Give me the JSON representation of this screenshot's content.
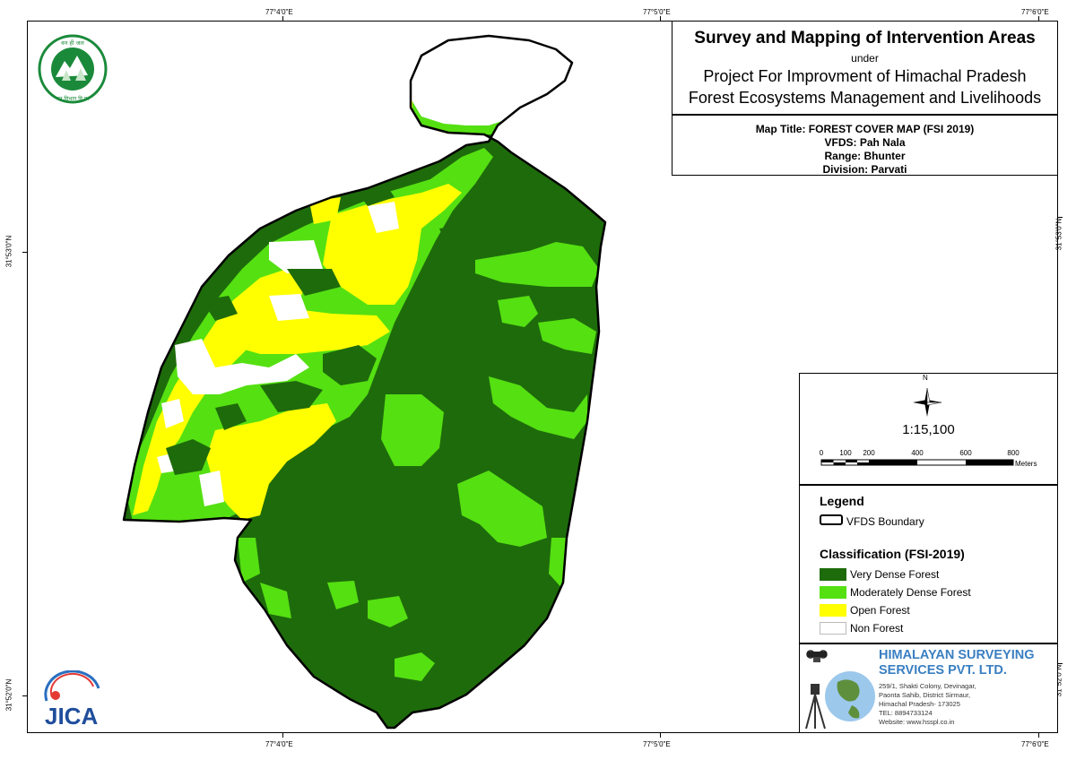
{
  "title": {
    "main": "Survey and Mapping of Intervention Areas",
    "under": "under",
    "project_line1": "Project For Improvment of Himachal Pradesh",
    "project_line2": "Forest Ecosystems Management and Livelihoods"
  },
  "map_info": {
    "map_title": "Map Title: FOREST COVER MAP (FSI 2019)",
    "vfds": "VFDS: Pah Nala",
    "range": "Range: Bhunter",
    "division": "Division: Parvati"
  },
  "graticule": {
    "top": [
      "77°4'0\"E",
      "77°5'0\"E",
      "77°6'0\"E"
    ],
    "bottom": [
      "77°4'0\"E",
      "77°5'0\"E",
      "77°6'0\"E"
    ],
    "left": [
      "31°53'0\"N",
      "31°52'0\"N"
    ],
    "right": [
      "31°53'0\"N",
      "31°52'0\"N"
    ]
  },
  "north_arrow": {
    "label": "N",
    "icon": "north-arrow-icon"
  },
  "scale": {
    "ratio": "1:15,100",
    "bar_labels": [
      "0",
      "100",
      "200",
      "400",
      "600",
      "800"
    ],
    "unit": "Meters"
  },
  "legend": {
    "title": "Legend",
    "boundary_label": "VFDS Boundary",
    "classification_title": "Classification (FSI-2019)",
    "classes": [
      {
        "label": "Very Dense Forest",
        "color": "#1e6b0b"
      },
      {
        "label": "Moderately Dense Forest",
        "color": "#55e012"
      },
      {
        "label": "Open Forest",
        "color": "#ffff00"
      },
      {
        "label": "Non Forest",
        "color": "#ffffff"
      }
    ]
  },
  "company": {
    "name_line1": "HIMALAYAN SURVEYING",
    "name_line2": "SERVICES PVT. LTD.",
    "address": [
      "259/1, Shakti Colony, Devinagar,",
      "Paonta Sahib, District Sirmaur,",
      "Himachal Pradesh- 173025",
      "TEL: 8894733124",
      "Website: www.hsspl.co.in"
    ]
  },
  "logos": {
    "jica_text": "JICA",
    "hp_forest_top": "वन ही जल, जिसका कोष",
    "hp_forest_bottom": "वन विभाग हिमाचल प्रदेश"
  },
  "colors": {
    "very_dense": "#1e6b0b",
    "moderately_dense": "#55e012",
    "open": "#ffff00",
    "non_forest": "#ffffff",
    "company_blue": "#3a7fc1"
  }
}
